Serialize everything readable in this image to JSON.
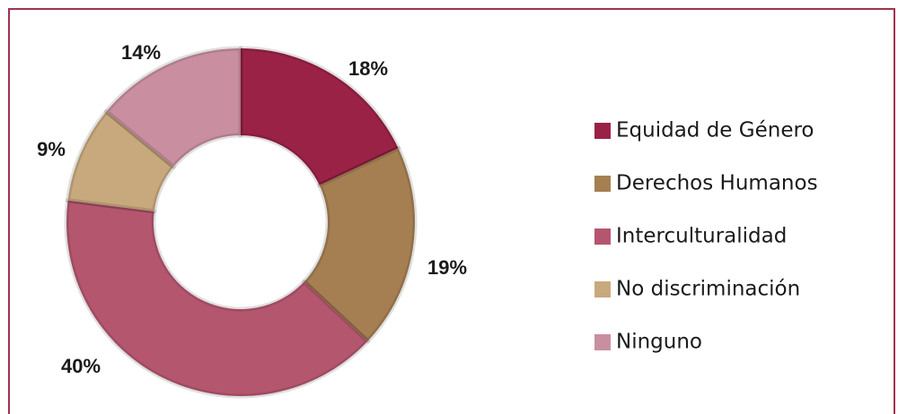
{
  "chart_data": {
    "type": "donut",
    "categories": [
      "Equidad de Género",
      "Derechos Humanos",
      "Interculturalidad",
      "No discriminación",
      "Ninguno"
    ],
    "values": [
      18,
      19,
      40,
      9,
      14
    ],
    "value_labels": [
      "18%",
      "19%",
      "40%",
      "9%",
      "14%"
    ],
    "colors": [
      "#9b2247",
      "#a57f52",
      "#b5566f",
      "#c8a97d",
      "#c98fa0"
    ],
    "legend": "right"
  }
}
